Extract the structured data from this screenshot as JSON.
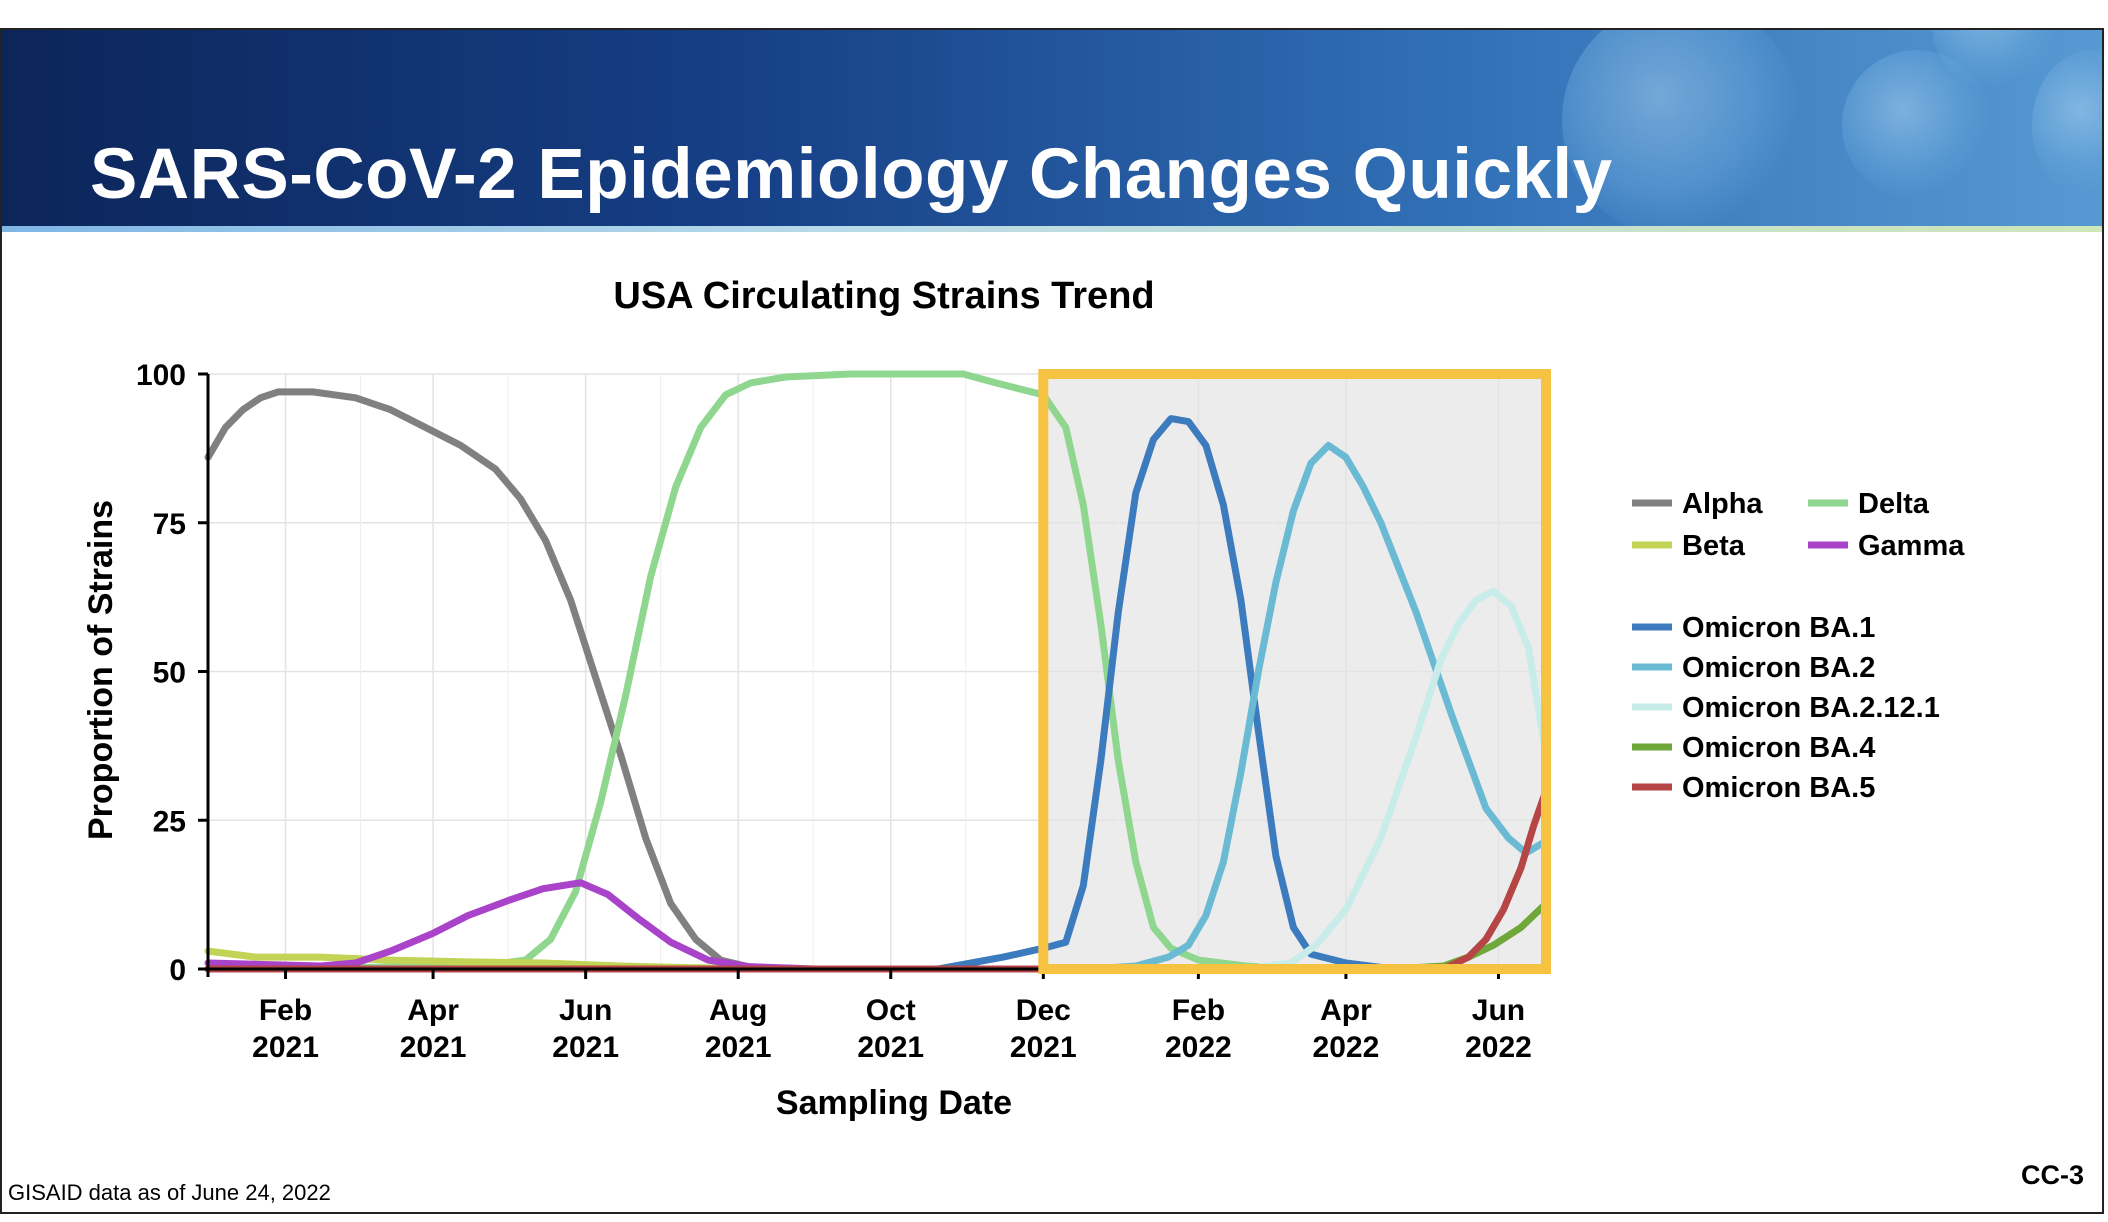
{
  "slide": {
    "title": "SARS-CoV-2 Epidemiology Changes Quickly",
    "footnote": "GISAID data as of June 24, 2022",
    "slide_id": "CC-3"
  },
  "colors": {
    "Alpha": "#808080",
    "Delta": "#8fd68f",
    "Beta": "#c3d355",
    "Gamma": "#a943c9",
    "Omicron BA.1": "#3d7bbf",
    "Omicron BA.2": "#6bbad4",
    "Omicron BA.2.12.1": "#c7ece9",
    "Omicron BA.4": "#6fa73a",
    "Omicron BA.5": "#b64646",
    "highlight": "#f5c242"
  },
  "chart_data": {
    "type": "line",
    "title": "USA Circulating Strains Trend",
    "xlabel": "Sampling Date",
    "ylabel": "Proportion of Strains",
    "xlim": [
      "2021-01-01",
      "2022-06-20"
    ],
    "ylim": [
      0,
      100
    ],
    "yticks": [
      0,
      25,
      50,
      75,
      100
    ],
    "xticks": [
      {
        "date": "2021-02-01",
        "month": "Feb",
        "year": "2021"
      },
      {
        "date": "2021-04-01",
        "month": "Apr",
        "year": "2021"
      },
      {
        "date": "2021-06-01",
        "month": "Jun",
        "year": "2021"
      },
      {
        "date": "2021-08-01",
        "month": "Aug",
        "year": "2021"
      },
      {
        "date": "2021-10-01",
        "month": "Oct",
        "year": "2021"
      },
      {
        "date": "2021-12-01",
        "month": "Dec",
        "year": "2021"
      },
      {
        "date": "2022-02-01",
        "month": "Feb",
        "year": "2022"
      },
      {
        "date": "2022-04-01",
        "month": "Apr",
        "year": "2022"
      },
      {
        "date": "2022-06-01",
        "month": "Jun",
        "year": "2022"
      }
    ],
    "highlight": {
      "x_start": "2021-12-01",
      "x_end": "2022-06-20",
      "y_start": 0,
      "y_end": 100
    },
    "grid": true,
    "legend_position": "right",
    "legend_groups": [
      [
        "Alpha",
        "Delta",
        "Beta",
        "Gamma"
      ],
      [
        "Omicron BA.1",
        "Omicron BA.2",
        "Omicron BA.2.12.1",
        "Omicron BA.4",
        "Omicron BA.5"
      ]
    ],
    "series": [
      {
        "name": "Alpha",
        "points": [
          [
            "2021-01-01",
            86
          ],
          [
            "2021-01-08",
            91
          ],
          [
            "2021-01-15",
            94
          ],
          [
            "2021-01-22",
            96
          ],
          [
            "2021-01-29",
            97
          ],
          [
            "2021-02-12",
            97
          ],
          [
            "2021-03-01",
            96
          ],
          [
            "2021-03-15",
            94
          ],
          [
            "2021-03-29",
            91
          ],
          [
            "2021-04-12",
            88
          ],
          [
            "2021-04-26",
            84
          ],
          [
            "2021-05-06",
            79
          ],
          [
            "2021-05-16",
            72
          ],
          [
            "2021-05-26",
            62
          ],
          [
            "2021-06-05",
            49
          ],
          [
            "2021-06-15",
            36
          ],
          [
            "2021-06-25",
            22
          ],
          [
            "2021-07-05",
            11
          ],
          [
            "2021-07-15",
            5
          ],
          [
            "2021-07-25",
            1.5
          ],
          [
            "2021-08-05",
            0.4
          ],
          [
            "2021-08-20",
            0
          ]
        ]
      },
      {
        "name": "Delta",
        "points": [
          [
            "2021-01-01",
            0
          ],
          [
            "2021-04-20",
            0.5
          ],
          [
            "2021-05-08",
            1.5
          ],
          [
            "2021-05-18",
            5
          ],
          [
            "2021-05-28",
            13
          ],
          [
            "2021-06-07",
            28
          ],
          [
            "2021-06-17",
            46
          ],
          [
            "2021-06-27",
            66
          ],
          [
            "2021-07-07",
            81
          ],
          [
            "2021-07-17",
            91
          ],
          [
            "2021-07-27",
            96.5
          ],
          [
            "2021-08-06",
            98.5
          ],
          [
            "2021-08-20",
            99.5
          ],
          [
            "2021-09-15",
            100
          ],
          [
            "2021-10-30",
            100
          ],
          [
            "2021-11-12",
            98.5
          ],
          [
            "2021-12-01",
            96.5
          ],
          [
            "2021-12-10",
            91
          ],
          [
            "2021-12-17",
            78
          ],
          [
            "2021-12-24",
            58
          ],
          [
            "2021-12-31",
            35
          ],
          [
            "2022-01-07",
            18
          ],
          [
            "2022-01-14",
            7
          ],
          [
            "2022-01-21",
            3.5
          ],
          [
            "2022-02-01",
            1.5
          ],
          [
            "2022-02-20",
            0.5
          ],
          [
            "2022-03-10",
            0
          ]
        ]
      },
      {
        "name": "Beta",
        "points": [
          [
            "2021-01-01",
            3
          ],
          [
            "2021-01-20",
            2
          ],
          [
            "2021-02-15",
            2
          ],
          [
            "2021-03-15",
            1.5
          ],
          [
            "2021-04-15",
            1.2
          ],
          [
            "2021-05-15",
            1
          ],
          [
            "2021-06-15",
            0.5
          ],
          [
            "2021-07-15",
            0.2
          ],
          [
            "2021-08-15",
            0
          ]
        ]
      },
      {
        "name": "Gamma",
        "points": [
          [
            "2021-01-01",
            1
          ],
          [
            "2021-02-15",
            0.5
          ],
          [
            "2021-03-01",
            1
          ],
          [
            "2021-03-15",
            3
          ],
          [
            "2021-04-01",
            6
          ],
          [
            "2021-04-15",
            9
          ],
          [
            "2021-05-01",
            11.5
          ],
          [
            "2021-05-15",
            13.5
          ],
          [
            "2021-05-30",
            14.5
          ],
          [
            "2021-06-10",
            12.5
          ],
          [
            "2021-06-22",
            8.5
          ],
          [
            "2021-07-05",
            4.5
          ],
          [
            "2021-07-20",
            1.5
          ],
          [
            "2021-08-05",
            0.4
          ],
          [
            "2021-09-01",
            0
          ]
        ]
      },
      {
        "name": "Omicron BA.1",
        "points": [
          [
            "2021-01-01",
            0
          ],
          [
            "2021-10-20",
            0
          ],
          [
            "2021-11-15",
            2
          ],
          [
            "2021-12-01",
            3.5
          ],
          [
            "2021-12-10",
            4.5
          ],
          [
            "2021-12-17",
            14
          ],
          [
            "2021-12-24",
            35
          ],
          [
            "2021-12-31",
            60
          ],
          [
            "2022-01-07",
            80
          ],
          [
            "2022-01-14",
            89
          ],
          [
            "2022-01-21",
            92.5
          ],
          [
            "2022-01-28",
            92
          ],
          [
            "2022-02-04",
            88
          ],
          [
            "2022-02-11",
            78
          ],
          [
            "2022-02-18",
            62
          ],
          [
            "2022-02-25",
            40
          ],
          [
            "2022-03-04",
            19
          ],
          [
            "2022-03-11",
            7
          ],
          [
            "2022-03-18",
            2.5
          ],
          [
            "2022-04-01",
            1
          ],
          [
            "2022-04-20",
            0
          ]
        ]
      },
      {
        "name": "Omicron BA.2",
        "points": [
          [
            "2021-01-01",
            0
          ],
          [
            "2021-12-20",
            0
          ],
          [
            "2022-01-07",
            0.5
          ],
          [
            "2022-01-20",
            2
          ],
          [
            "2022-01-28",
            4
          ],
          [
            "2022-02-04",
            9
          ],
          [
            "2022-02-11",
            18
          ],
          [
            "2022-02-18",
            33
          ],
          [
            "2022-02-25",
            50
          ],
          [
            "2022-03-04",
            65
          ],
          [
            "2022-03-11",
            77
          ],
          [
            "2022-03-18",
            85
          ],
          [
            "2022-03-25",
            88
          ],
          [
            "2022-04-01",
            86
          ],
          [
            "2022-04-08",
            81
          ],
          [
            "2022-04-15",
            75
          ],
          [
            "2022-04-29",
            60
          ],
          [
            "2022-05-13",
            43
          ],
          [
            "2022-05-27",
            27
          ],
          [
            "2022-06-05",
            22
          ],
          [
            "2022-06-12",
            19.5
          ],
          [
            "2022-06-20",
            21.5
          ]
        ]
      },
      {
        "name": "Omicron BA.2.12.1",
        "points": [
          [
            "2021-01-01",
            0
          ],
          [
            "2022-02-20",
            0
          ],
          [
            "2022-03-10",
            1
          ],
          [
            "2022-03-20",
            4
          ],
          [
            "2022-04-01",
            10
          ],
          [
            "2022-04-15",
            22
          ],
          [
            "2022-04-29",
            39
          ],
          [
            "2022-05-09",
            52
          ],
          [
            "2022-05-16",
            58
          ],
          [
            "2022-05-23",
            62
          ],
          [
            "2022-05-30",
            63.5
          ],
          [
            "2022-06-06",
            61
          ],
          [
            "2022-06-13",
            54
          ],
          [
            "2022-06-20",
            36
          ]
        ]
      },
      {
        "name": "Omicron BA.4",
        "points": [
          [
            "2021-01-01",
            0
          ],
          [
            "2022-04-20",
            0
          ],
          [
            "2022-05-10",
            0.5
          ],
          [
            "2022-05-20",
            2
          ],
          [
            "2022-05-30",
            4
          ],
          [
            "2022-06-10",
            7
          ],
          [
            "2022-06-20",
            11
          ]
        ]
      },
      {
        "name": "Omicron BA.5",
        "points": [
          [
            "2021-01-01",
            0
          ],
          [
            "2022-05-10",
            0
          ],
          [
            "2022-05-20",
            2
          ],
          [
            "2022-05-27",
            5
          ],
          [
            "2022-06-03",
            10
          ],
          [
            "2022-06-10",
            17
          ],
          [
            "2022-06-15",
            24
          ],
          [
            "2022-06-20",
            30
          ]
        ]
      }
    ]
  }
}
